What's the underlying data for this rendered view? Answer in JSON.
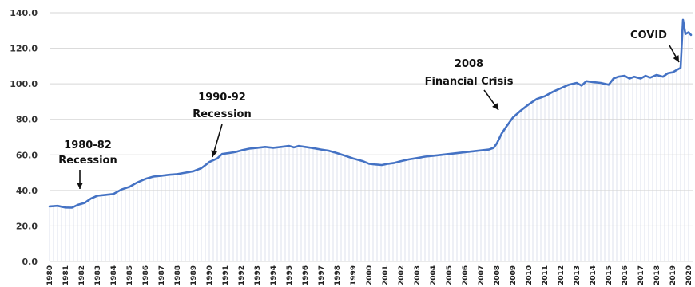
{
  "chart_data": {
    "type": "area",
    "title": "",
    "xlabel": "",
    "ylabel": "",
    "ylim": [
      0,
      140
    ],
    "yticks": [
      "0.0",
      "20.0",
      "40.0",
      "60.0",
      "80.0",
      "100.0",
      "120.0",
      "140.0"
    ],
    "xticks": [
      "1980",
      "1981",
      "1982",
      "1983",
      "1984",
      "1985",
      "1986",
      "1987",
      "1988",
      "1989",
      "1990",
      "1991",
      "1992",
      "1993",
      "1994",
      "1995",
      "1996",
      "1997",
      "1998",
      "1999",
      "2000",
      "2001",
      "2002",
      "2003",
      "2004",
      "2005",
      "2006",
      "2007",
      "2008",
      "2009",
      "2010",
      "2011",
      "2012",
      "2013",
      "2014",
      "2015",
      "2016",
      "2017",
      "2018",
      "2019",
      "2020"
    ],
    "grid": true,
    "series": [
      {
        "color": "#4472c4",
        "points": [
          [
            1980.0,
            31.0
          ],
          [
            1980.5,
            31.3
          ],
          [
            1981.0,
            30.4
          ],
          [
            1981.4,
            30.3
          ],
          [
            1981.8,
            32.0
          ],
          [
            1982.2,
            33.0
          ],
          [
            1982.6,
            35.5
          ],
          [
            1983.0,
            37.0
          ],
          [
            1983.5,
            37.5
          ],
          [
            1984.0,
            38.0
          ],
          [
            1984.5,
            40.5
          ],
          [
            1985.0,
            42.0
          ],
          [
            1985.5,
            44.5
          ],
          [
            1986.0,
            46.5
          ],
          [
            1986.5,
            47.8
          ],
          [
            1987.0,
            48.3
          ],
          [
            1987.5,
            48.8
          ],
          [
            1988.0,
            49.2
          ],
          [
            1988.5,
            50.0
          ],
          [
            1989.0,
            50.8
          ],
          [
            1989.5,
            52.5
          ],
          [
            1989.8,
            54.5
          ],
          [
            1990.0,
            56.0
          ],
          [
            1990.5,
            58.0
          ],
          [
            1990.8,
            60.5
          ],
          [
            1991.2,
            61.0
          ],
          [
            1991.6,
            61.5
          ],
          [
            1992.0,
            62.5
          ],
          [
            1992.5,
            63.5
          ],
          [
            1993.0,
            64.0
          ],
          [
            1993.5,
            64.5
          ],
          [
            1994.0,
            64.0
          ],
          [
            1994.5,
            64.5
          ],
          [
            1995.0,
            65.0
          ],
          [
            1995.3,
            64.2
          ],
          [
            1995.6,
            65.0
          ],
          [
            1996.0,
            64.5
          ],
          [
            1996.5,
            63.8
          ],
          [
            1997.0,
            63.0
          ],
          [
            1997.5,
            62.3
          ],
          [
            1998.0,
            61.0
          ],
          [
            1998.5,
            59.5
          ],
          [
            1999.0,
            58.0
          ],
          [
            1999.6,
            56.5
          ],
          [
            2000.0,
            55.0
          ],
          [
            2000.4,
            54.6
          ],
          [
            2000.8,
            54.3
          ],
          [
            2001.2,
            55.0
          ],
          [
            2001.6,
            55.5
          ],
          [
            2002.0,
            56.5
          ],
          [
            2002.5,
            57.5
          ],
          [
            2003.0,
            58.2
          ],
          [
            2003.5,
            59.0
          ],
          [
            2004.0,
            59.5
          ],
          [
            2004.5,
            60.0
          ],
          [
            2005.0,
            60.5
          ],
          [
            2005.5,
            61.0
          ],
          [
            2006.0,
            61.5
          ],
          [
            2006.5,
            62.0
          ],
          [
            2007.0,
            62.5
          ],
          [
            2007.5,
            63.0
          ],
          [
            2007.8,
            64.0
          ],
          [
            2008.0,
            66.5
          ],
          [
            2008.3,
            72.0
          ],
          [
            2008.6,
            76.0
          ],
          [
            2009.0,
            81.0
          ],
          [
            2009.5,
            85.0
          ],
          [
            2010.0,
            88.5
          ],
          [
            2010.5,
            91.5
          ],
          [
            2011.0,
            93.0
          ],
          [
            2011.5,
            95.5
          ],
          [
            2012.0,
            97.5
          ],
          [
            2012.5,
            99.5
          ],
          [
            2013.0,
            100.5
          ],
          [
            2013.3,
            99.0
          ],
          [
            2013.6,
            101.5
          ],
          [
            2014.0,
            101.0
          ],
          [
            2014.5,
            100.5
          ],
          [
            2015.0,
            99.5
          ],
          [
            2015.3,
            103.0
          ],
          [
            2015.6,
            104.0
          ],
          [
            2016.0,
            104.5
          ],
          [
            2016.3,
            103.0
          ],
          [
            2016.6,
            104.0
          ],
          [
            2017.0,
            103.0
          ],
          [
            2017.3,
            104.5
          ],
          [
            2017.6,
            103.5
          ],
          [
            2018.0,
            105.0
          ],
          [
            2018.4,
            104.0
          ],
          [
            2018.7,
            106.0
          ],
          [
            2019.0,
            106.5
          ],
          [
            2019.3,
            108.0
          ],
          [
            2019.5,
            109.0
          ],
          [
            2019.65,
            136.0
          ],
          [
            2019.8,
            128.0
          ],
          [
            2020.0,
            129.0
          ],
          [
            2020.15,
            127.5
          ]
        ]
      }
    ],
    "annotations": [
      {
        "lines": [
          "1980-82",
          "Recession"
        ]
      },
      {
        "lines": [
          "1990-92",
          "Recession"
        ]
      },
      {
        "lines": [
          "2008",
          "Financial Crisis"
        ]
      },
      {
        "lines": [
          "COVID"
        ]
      }
    ]
  }
}
